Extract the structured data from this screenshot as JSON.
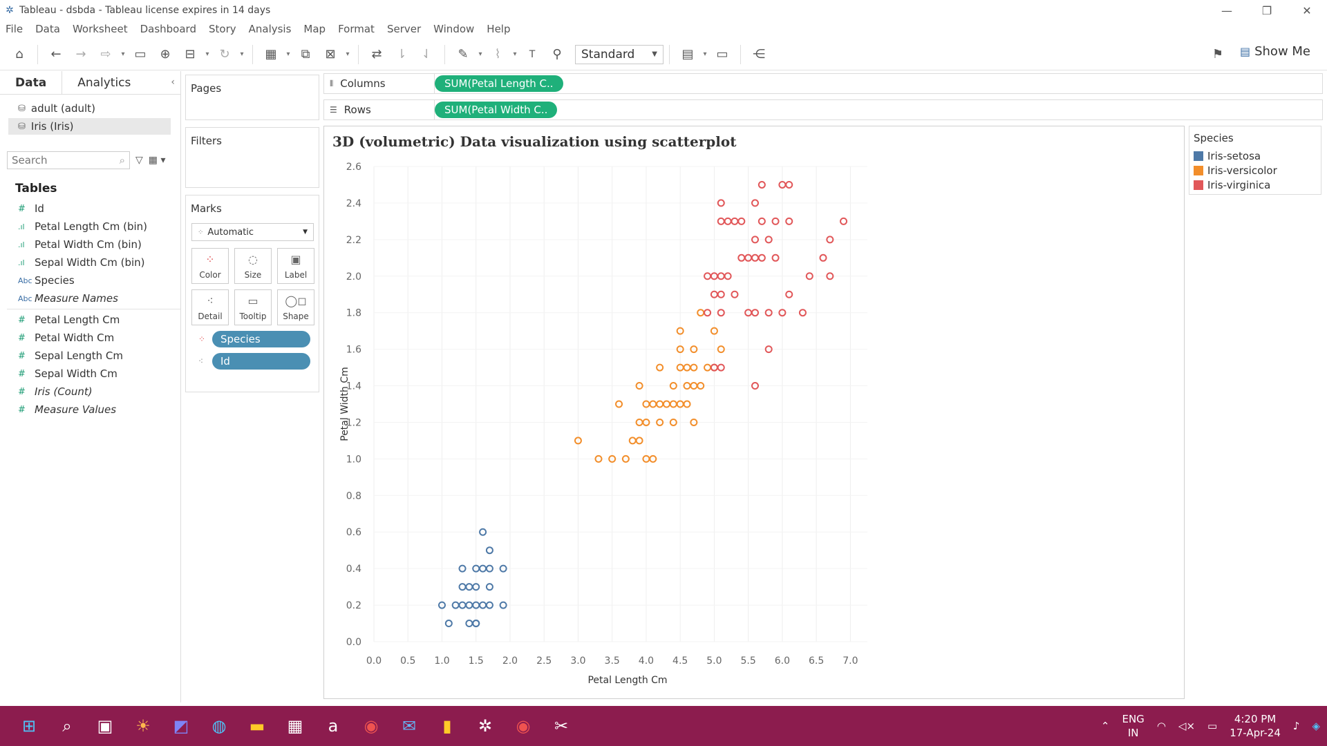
{
  "window": {
    "title": "Tableau - dsbda - Tableau license expires in 14 days",
    "minimize": "—",
    "restore": "❐",
    "close": "✕"
  },
  "menu": [
    "File",
    "Data",
    "Worksheet",
    "Dashboard",
    "Story",
    "Analysis",
    "Map",
    "Format",
    "Server",
    "Window",
    "Help"
  ],
  "toolbar": {
    "fit_select": "Standard",
    "show_me": "Show Me"
  },
  "data_pane": {
    "tab_data": "Data",
    "tab_analytics": "Analytics",
    "datasources": [
      "adult (adult)",
      "Iris (Iris)"
    ],
    "search_placeholder": "Search",
    "tables_heading": "Tables",
    "fields": [
      {
        "name": "Id",
        "kind": "measure"
      },
      {
        "name": "Petal Length Cm (bin)",
        "kind": "bin"
      },
      {
        "name": "Petal Width Cm (bin)",
        "kind": "bin"
      },
      {
        "name": "Sepal Width Cm (bin)",
        "kind": "bin"
      },
      {
        "name": "Species",
        "kind": "dimension"
      },
      {
        "name": "Measure Names",
        "kind": "dimension"
      },
      {
        "name": "Petal Length Cm",
        "kind": "measure"
      },
      {
        "name": "Petal Width Cm",
        "kind": "measure"
      },
      {
        "name": "Sepal Length Cm",
        "kind": "measure"
      },
      {
        "name": "Sepal Width Cm",
        "kind": "measure"
      },
      {
        "name": "Iris (Count)",
        "kind": "measure"
      },
      {
        "name": "Measure Values",
        "kind": "measure"
      }
    ],
    "field_icons": {
      "measure": "#",
      "bin": ".ıl",
      "dimension": "Abc"
    }
  },
  "cards": {
    "pages": "Pages",
    "filters": "Filters",
    "marks": "Marks",
    "mark_type": "Automatic",
    "mark_buttons": [
      "Color",
      "Size",
      "Label",
      "Detail",
      "Tooltip",
      "Shape"
    ],
    "mark_pills": [
      "Species",
      "Id"
    ]
  },
  "shelves": {
    "columns_label": "Columns",
    "columns_pill": "SUM(Petal Length C..",
    "rows_label": "Rows",
    "rows_pill": "SUM(Petal Width C.."
  },
  "sheet": {
    "title": "3D (volumetric) Data visualization using scatterplot"
  },
  "legend": {
    "title": "Species",
    "items": [
      {
        "label": "Iris-setosa",
        "color": "#4e79a7"
      },
      {
        "label": "Iris-versicolor",
        "color": "#f28e2b"
      },
      {
        "label": "Iris-virginica",
        "color": "#e15759"
      }
    ]
  },
  "taskbar": {
    "lang_top": "ENG",
    "lang_bottom": "IN",
    "time": "4:20 PM",
    "date": "17-Apr-24",
    "background": "#8c1c4e"
  },
  "chart_data": {
    "type": "scatter",
    "title": "3D (volumetric) Data visualization using scatterplot",
    "xlabel": "Petal Length Cm",
    "ylabel": "Petal Width Cm",
    "xlim": [
      0,
      7.25
    ],
    "ylim": [
      0,
      2.6
    ],
    "x_ticks": [
      "0.0",
      "0.5",
      "1.0",
      "1.5",
      "2.0",
      "2.5",
      "3.0",
      "3.5",
      "4.0",
      "4.5",
      "5.0",
      "5.5",
      "6.0",
      "6.5",
      "7.0"
    ],
    "y_ticks": [
      "0.0",
      "0.2",
      "0.4",
      "0.6",
      "0.8",
      "1.0",
      "1.2",
      "1.4",
      "1.6",
      "1.8",
      "2.0",
      "2.2",
      "2.4",
      "2.6"
    ],
    "grid": true,
    "legend_position": "right",
    "marker": "hollow-circle",
    "series": [
      {
        "name": "Iris-setosa",
        "color": "#4e79a7",
        "points": [
          [
            1.1,
            0.1
          ],
          [
            1.4,
            0.1
          ],
          [
            1.5,
            0.1
          ],
          [
            1.5,
            0.1
          ],
          [
            1.0,
            0.2
          ],
          [
            1.2,
            0.2
          ],
          [
            1.3,
            0.2
          ],
          [
            1.4,
            0.2
          ],
          [
            1.5,
            0.2
          ],
          [
            1.6,
            0.2
          ],
          [
            1.7,
            0.2
          ],
          [
            1.9,
            0.2
          ],
          [
            1.3,
            0.3
          ],
          [
            1.4,
            0.3
          ],
          [
            1.5,
            0.3
          ],
          [
            1.7,
            0.3
          ],
          [
            1.3,
            0.4
          ],
          [
            1.5,
            0.4
          ],
          [
            1.6,
            0.4
          ],
          [
            1.7,
            0.4
          ],
          [
            1.9,
            0.4
          ],
          [
            1.7,
            0.5
          ],
          [
            1.6,
            0.6
          ]
        ]
      },
      {
        "name": "Iris-versicolor",
        "color": "#f28e2b",
        "points": [
          [
            3.0,
            1.1
          ],
          [
            3.3,
            1.0
          ],
          [
            3.5,
            1.0
          ],
          [
            3.7,
            1.0
          ],
          [
            4.0,
            1.0
          ],
          [
            4.1,
            1.0
          ],
          [
            3.8,
            1.1
          ],
          [
            3.9,
            1.1
          ],
          [
            3.9,
            1.2
          ],
          [
            4.0,
            1.2
          ],
          [
            4.2,
            1.2
          ],
          [
            4.4,
            1.2
          ],
          [
            4.7,
            1.2
          ],
          [
            3.6,
            1.3
          ],
          [
            4.0,
            1.3
          ],
          [
            4.1,
            1.3
          ],
          [
            4.2,
            1.3
          ],
          [
            4.3,
            1.3
          ],
          [
            4.4,
            1.3
          ],
          [
            4.5,
            1.3
          ],
          [
            4.6,
            1.3
          ],
          [
            3.9,
            1.4
          ],
          [
            4.4,
            1.4
          ],
          [
            4.6,
            1.4
          ],
          [
            4.7,
            1.4
          ],
          [
            4.8,
            1.4
          ],
          [
            4.2,
            1.5
          ],
          [
            4.5,
            1.5
          ],
          [
            4.6,
            1.5
          ],
          [
            4.7,
            1.5
          ],
          [
            4.9,
            1.5
          ],
          [
            5.0,
            1.5
          ],
          [
            4.5,
            1.6
          ],
          [
            4.7,
            1.6
          ],
          [
            5.1,
            1.6
          ],
          [
            4.5,
            1.7
          ],
          [
            5.0,
            1.7
          ],
          [
            4.8,
            1.8
          ]
        ]
      },
      {
        "name": "Iris-virginica",
        "color": "#e15759",
        "points": [
          [
            5.0,
            1.5
          ],
          [
            5.1,
            1.5
          ],
          [
            5.6,
            1.4
          ],
          [
            5.8,
            1.6
          ],
          [
            4.9,
            1.8
          ],
          [
            5.1,
            1.8
          ],
          [
            5.5,
            1.8
          ],
          [
            5.6,
            1.8
          ],
          [
            5.8,
            1.8
          ],
          [
            6.0,
            1.8
          ],
          [
            6.3,
            1.8
          ],
          [
            5.0,
            1.9
          ],
          [
            5.1,
            1.9
          ],
          [
            5.3,
            1.9
          ],
          [
            6.1,
            1.9
          ],
          [
            4.9,
            2.0
          ],
          [
            5.0,
            2.0
          ],
          [
            5.1,
            2.0
          ],
          [
            5.2,
            2.0
          ],
          [
            6.4,
            2.0
          ],
          [
            6.7,
            2.0
          ],
          [
            5.4,
            2.1
          ],
          [
            5.5,
            2.1
          ],
          [
            5.6,
            2.1
          ],
          [
            5.7,
            2.1
          ],
          [
            5.9,
            2.1
          ],
          [
            6.6,
            2.1
          ],
          [
            5.6,
            2.2
          ],
          [
            5.8,
            2.2
          ],
          [
            6.7,
            2.2
          ],
          [
            5.1,
            2.3
          ],
          [
            5.2,
            2.3
          ],
          [
            5.3,
            2.3
          ],
          [
            5.4,
            2.3
          ],
          [
            5.7,
            2.3
          ],
          [
            5.9,
            2.3
          ],
          [
            6.1,
            2.3
          ],
          [
            6.9,
            2.3
          ],
          [
            5.1,
            2.4
          ],
          [
            5.6,
            2.4
          ],
          [
            5.7,
            2.5
          ],
          [
            6.0,
            2.5
          ],
          [
            6.1,
            2.5
          ]
        ]
      }
    ]
  }
}
